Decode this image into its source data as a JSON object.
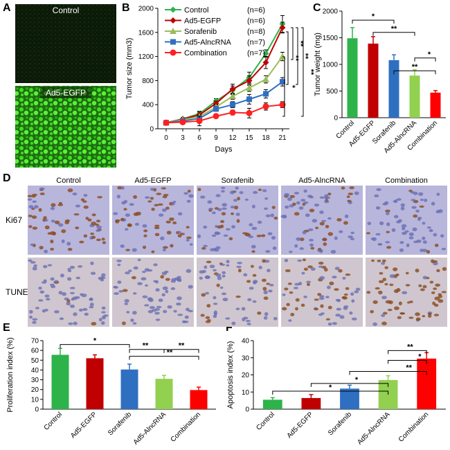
{
  "figure": {
    "panel_letters": [
      "A",
      "B",
      "C",
      "D",
      "E",
      "F"
    ],
    "panel_a": {
      "labels": [
        "Control",
        "Ad5-EGFP"
      ],
      "colors": {
        "dark_field": "#0b1a07",
        "fluor": "#3ee01f",
        "fluor_dim": "#1e6e12"
      }
    },
    "panel_d": {
      "columns": [
        "Control",
        "Ad5-EGFP",
        "Sorafenib",
        "Ad5-AlncRNA",
        "Combination"
      ],
      "rows": [
        "Ki67",
        "TUNEL"
      ],
      "colors": {
        "ki67_bg": "#b9b6dc",
        "tunel_bg": "#cfc6cf",
        "nuclei_blue": "#6a6fb3",
        "nuclei_brown": "#8a4a1c"
      },
      "stain_levels": {
        "ki67": [
          0.7,
          0.65,
          0.4,
          0.35,
          0.15
        ],
        "tunel": [
          0.08,
          0.12,
          0.35,
          0.5,
          0.75
        ]
      }
    }
  },
  "chart_data": [
    {
      "id": "B",
      "type": "line",
      "xlabel": "Days",
      "ylabel": "Tumor size (mm3)",
      "x": [
        0,
        3,
        6,
        9,
        12,
        15,
        18,
        21
      ],
      "xticks": [
        "0",
        "3",
        "6",
        "9",
        "12",
        "15",
        "18",
        "21"
      ],
      "ylim": [
        0,
        2000
      ],
      "yticks": [
        "0",
        "400",
        "800",
        "1200",
        "1600",
        "2000"
      ],
      "series": [
        {
          "name": "Control",
          "n_label": "(n=6)",
          "color": "#2db34a",
          "marker": "diamond",
          "values": [
            100,
            165,
            250,
            460,
            640,
            850,
            1250,
            1740
          ],
          "err": [
            10,
            20,
            40,
            40,
            70,
            90,
            60,
            140
          ]
        },
        {
          "name": "Ad5-EGFP",
          "n_label": "(n=6)",
          "color": "#c00000",
          "marker": "diamond",
          "values": [
            100,
            160,
            230,
            420,
            660,
            800,
            1100,
            1680
          ],
          "err": [
            10,
            20,
            50,
            40,
            80,
            80,
            100,
            90
          ]
        },
        {
          "name": "Sorafenib",
          "n_label": "(n=8)",
          "color": "#9bbb59",
          "marker": "triangle",
          "values": [
            100,
            150,
            200,
            360,
            540,
            680,
            820,
            1200
          ],
          "err": [
            10,
            15,
            30,
            40,
            50,
            60,
            60,
            70
          ]
        },
        {
          "name": "Ad5-AlncRNA",
          "n_label": "(n=7)",
          "color": "#2f6fc1",
          "marker": "square",
          "values": [
            100,
            130,
            170,
            330,
            400,
            490,
            580,
            780
          ],
          "err": [
            10,
            15,
            30,
            40,
            50,
            80,
            70,
            70
          ]
        },
        {
          "name": "Combination",
          "n_label": "(n=7)",
          "color": "#ff2020",
          "marker": "circle",
          "values": [
            100,
            110,
            130,
            210,
            270,
            260,
            370,
            400
          ],
          "err": [
            10,
            15,
            80,
            20,
            40,
            80,
            60,
            50
          ]
        }
      ],
      "significance": [
        "**",
        "**",
        "**",
        "**",
        "*"
      ]
    },
    {
      "id": "C",
      "type": "bar",
      "ylabel": "Tumor weight (mg)",
      "categories": [
        "Control",
        "Ad5-EGFP",
        "Sorafenib",
        "Ad5-AlncRNA",
        "Combination"
      ],
      "values": [
        1490,
        1390,
        1080,
        790,
        470
      ],
      "err": [
        200,
        130,
        100,
        110,
        40
      ],
      "colors": [
        "#2db34a",
        "#c00000",
        "#2f6fc1",
        "#92d050",
        "#ff0000"
      ],
      "ylim": [
        0,
        2000
      ],
      "yticks": [
        "0",
        "500",
        "1000",
        "1500",
        "2000"
      ],
      "significance": [
        "*",
        "**",
        "*",
        "**"
      ]
    },
    {
      "id": "E",
      "type": "bar",
      "ylabel": "Proliferation index (%)",
      "categories": [
        "Control",
        "Ad5-EGFP",
        "Sorafenib",
        "Ad5-AlncRNA",
        "Combination"
      ],
      "values": [
        55.5,
        52,
        40.5,
        31,
        19.5
      ],
      "err": [
        6.5,
        3.5,
        5.5,
        3.5,
        3
      ],
      "colors": [
        "#2db34a",
        "#c00000",
        "#2f6fc1",
        "#92d050",
        "#ff0000"
      ],
      "ylim": [
        0,
        70
      ],
      "yticks": [
        "0",
        "10",
        "20",
        "30",
        "40",
        "50",
        "60",
        "70"
      ],
      "significance": [
        "*",
        "**",
        "**",
        "**"
      ]
    },
    {
      "id": "F",
      "type": "bar",
      "ylabel": "Apoptosis index (%)",
      "categories": [
        "Control",
        "Ad5-EGFP",
        "Sorafenib",
        "Ad5-AlncRNA",
        "Combination"
      ],
      "values": [
        5.5,
        6.5,
        12,
        17,
        29.5
      ],
      "err": [
        1.2,
        2,
        2,
        2.5,
        3.5
      ],
      "colors": [
        "#2db34a",
        "#c00000",
        "#2f6fc1",
        "#92d050",
        "#ff0000"
      ],
      "ylim": [
        0,
        40
      ],
      "yticks": [
        "0",
        "10",
        "20",
        "30",
        "40"
      ],
      "significance": [
        "*",
        "*",
        "**",
        "**",
        "*"
      ]
    }
  ]
}
